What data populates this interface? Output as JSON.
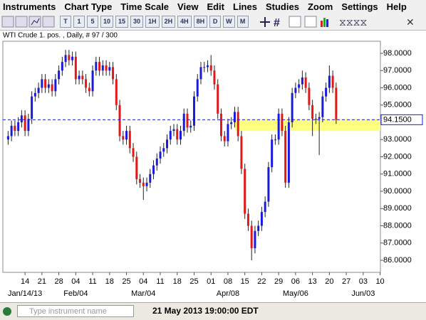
{
  "menu": [
    "Instruments",
    "Chart Type",
    "Time Scale",
    "View",
    "Edit",
    "Lines",
    "Studies",
    "Zoom",
    "Settings",
    "Help"
  ],
  "toolbar": [
    "T",
    "1",
    "5",
    "10",
    "15",
    "30",
    "1H",
    "2H",
    "4H",
    "8H",
    "D",
    "W",
    "M"
  ],
  "status": {
    "search_placeholder": "Type instrument name",
    "datetime": "21 May 2013 19:00:00 EDT"
  },
  "chart_data": {
    "type": "candlestick",
    "title": "WTI Crude 1. pos. , Daily, # 97 / 300",
    "categories": [
      null,
      null,
      null,
      null,
      null,
      "14",
      null,
      null,
      null,
      null,
      "21",
      null,
      null,
      null,
      null,
      "28",
      null,
      null,
      null,
      null,
      "04",
      null,
      null,
      null,
      null,
      "11",
      null,
      null,
      null,
      null,
      "18",
      null,
      null,
      null,
      null,
      "25",
      null,
      null,
      null,
      null,
      "04",
      null,
      null,
      null,
      null,
      "11",
      null,
      null,
      null,
      null,
      "18",
      null,
      null,
      null,
      null,
      "25",
      null,
      null,
      null,
      null,
      "01",
      null,
      null,
      null,
      null,
      "08",
      null,
      null,
      null,
      null,
      "15",
      null,
      null,
      null,
      null,
      "22",
      null,
      null,
      null,
      null,
      "29",
      null,
      null,
      null,
      null,
      "06",
      null,
      null,
      null,
      null,
      "13",
      null,
      null,
      null,
      null,
      "20",
      null,
      null,
      null,
      null,
      "27",
      null,
      null,
      null,
      null,
      "03",
      null,
      null,
      null,
      null,
      "10",
      null
    ],
    "categories2": [
      null,
      null,
      null,
      null,
      null,
      "Jan/14/13",
      null,
      null,
      null,
      null,
      null,
      null,
      null,
      null,
      null,
      null,
      null,
      null,
      null,
      null,
      "Feb/04",
      null,
      null,
      null,
      null,
      null,
      null,
      null,
      null,
      null,
      null,
      null,
      null,
      null,
      null,
      null,
      null,
      null,
      null,
      null,
      "Mar/04",
      null,
      null,
      null,
      null,
      null,
      null,
      null,
      null,
      null,
      null,
      null,
      null,
      null,
      null,
      null,
      null,
      null,
      null,
      null,
      null,
      null,
      null,
      null,
      null,
      "Apr/08",
      null,
      null,
      null,
      null,
      null,
      null,
      null,
      null,
      null,
      null,
      null,
      null,
      null,
      null,
      null,
      null,
      null,
      null,
      null,
      "May/06",
      null,
      null,
      null,
      null,
      null,
      null,
      null,
      null,
      null,
      null,
      null,
      null,
      null,
      null,
      null,
      null,
      null,
      null,
      null,
      "Jun/03",
      null,
      null,
      null,
      null,
      null,
      null
    ],
    "open": [
      93.0,
      93.2,
      93.8,
      93.5,
      94.0,
      94.4,
      93.5,
      94.2,
      95.5,
      95.7,
      96.0,
      96.5,
      96.0,
      96.2,
      95.8,
      96.5,
      97.0,
      97.5,
      97.9,
      97.6,
      97.8,
      96.5,
      96.7,
      96.5,
      96.0,
      95.8,
      97.0,
      97.5,
      97.0,
      97.3,
      97.0,
      97.2,
      96.5,
      95.0,
      93.2,
      93.0,
      93.5,
      92.5,
      92.0,
      90.7,
      90.5,
      90.3,
      90.5,
      91.0,
      91.5,
      91.9,
      92.3,
      92.5,
      93.0,
      93.5,
      93.6,
      93.0,
      93.5,
      94.5,
      93.7,
      93.8,
      95.5,
      96.5,
      97.2,
      97.2,
      97.3,
      97.0,
      96.2,
      94.5,
      93.2,
      92.9,
      93.9,
      94.0,
      94.6,
      93.2,
      91.3,
      88.7,
      88.0,
      86.7,
      87.7,
      88.0,
      88.8,
      89.4,
      91.4,
      93.0,
      93.0,
      94.5,
      93.5,
      90.5,
      94.0,
      95.7,
      96.0,
      96.2,
      96.6,
      96.0,
      95.0,
      94.2,
      94.2,
      94.3,
      95.5,
      96.0,
      96.7,
      96.0,
      null,
      null,
      null,
      null,
      null,
      null,
      null,
      null,
      null,
      null,
      null,
      null,
      null,
      null
    ],
    "high": [
      93.5,
      94.1,
      94.1,
      94.3,
      94.7,
      94.7,
      94.5,
      95.8,
      96.0,
      96.3,
      96.8,
      96.8,
      96.5,
      96.5,
      96.8,
      97.3,
      97.8,
      98.2,
      98.2,
      98.1,
      98.1,
      97.0,
      97.0,
      96.8,
      96.3,
      97.3,
      97.8,
      97.8,
      97.6,
      97.6,
      97.5,
      97.5,
      96.8,
      95.3,
      93.5,
      93.8,
      93.8,
      92.8,
      92.3,
      91.0,
      90.8,
      90.8,
      91.3,
      91.8,
      92.2,
      92.6,
      92.8,
      93.3,
      93.8,
      93.9,
      93.9,
      93.8,
      94.8,
      94.8,
      94.1,
      95.8,
      96.8,
      97.5,
      97.5,
      97.6,
      97.9,
      97.3,
      96.5,
      94.8,
      93.5,
      94.2,
      94.3,
      94.9,
      94.9,
      93.5,
      91.6,
      89.0,
      88.3,
      88.0,
      88.3,
      89.1,
      89.7,
      91.7,
      93.3,
      93.3,
      94.8,
      94.8,
      93.8,
      94.3,
      96.0,
      96.3,
      96.5,
      97.0,
      96.9,
      96.3,
      95.3,
      94.5,
      94.6,
      95.8,
      96.3,
      97.3,
      97.0,
      96.3,
      null,
      null,
      null,
      null,
      null,
      null,
      null,
      null,
      null,
      null,
      null,
      null,
      null,
      null
    ],
    "low": [
      92.7,
      92.9,
      93.2,
      93.2,
      93.7,
      93.2,
      93.2,
      93.9,
      95.2,
      95.4,
      95.7,
      95.7,
      95.7,
      95.5,
      95.5,
      96.2,
      96.7,
      97.2,
      97.3,
      97.3,
      96.2,
      96.2,
      96.2,
      95.7,
      95.5,
      95.5,
      96.7,
      96.7,
      96.7,
      96.7,
      96.7,
      96.2,
      94.7,
      92.9,
      92.7,
      92.7,
      92.2,
      91.7,
      90.4,
      90.2,
      89.5,
      90.0,
      90.2,
      90.7,
      91.2,
      91.6,
      92.0,
      92.2,
      92.7,
      93.2,
      92.7,
      92.7,
      93.2,
      93.4,
      93.4,
      93.5,
      95.2,
      96.2,
      96.9,
      96.9,
      96.7,
      95.9,
      94.2,
      92.9,
      92.6,
      92.6,
      93.6,
      93.7,
      92.9,
      91.0,
      88.4,
      87.7,
      86.0,
      86.4,
      87.4,
      87.7,
      88.5,
      89.1,
      91.1,
      92.7,
      92.7,
      93.2,
      90.2,
      90.2,
      93.7,
      95.4,
      95.7,
      95.9,
      95.7,
      94.7,
      93.2,
      93.9,
      92.1,
      94.0,
      95.2,
      95.7,
      95.7,
      93.9,
      null,
      null,
      null,
      null,
      null,
      null,
      null,
      null,
      null,
      null,
      null,
      null,
      null,
      null
    ],
    "close": [
      93.2,
      93.8,
      93.5,
      94.0,
      94.4,
      93.5,
      94.2,
      95.5,
      95.7,
      96.0,
      96.5,
      96.0,
      96.2,
      95.8,
      96.5,
      97.0,
      97.5,
      97.9,
      97.6,
      97.8,
      96.5,
      96.7,
      96.5,
      96.0,
      95.8,
      97.0,
      97.5,
      97.0,
      97.3,
      97.0,
      97.2,
      96.5,
      95.0,
      93.2,
      93.0,
      93.5,
      92.5,
      92.0,
      90.7,
      90.5,
      90.3,
      90.5,
      91.0,
      91.5,
      91.9,
      92.3,
      92.5,
      93.0,
      93.5,
      93.6,
      93.0,
      93.5,
      94.5,
      93.7,
      93.8,
      95.5,
      96.5,
      97.2,
      97.2,
      97.3,
      97.0,
      96.2,
      94.5,
      93.2,
      92.9,
      93.9,
      94.0,
      94.6,
      93.2,
      91.3,
      88.7,
      88.0,
      86.7,
      87.7,
      88.0,
      88.8,
      89.4,
      91.4,
      93.0,
      93.0,
      94.5,
      93.5,
      90.5,
      94.0,
      95.7,
      96.0,
      96.2,
      96.6,
      96.0,
      95.0,
      94.2,
      94.2,
      94.3,
      95.5,
      96.0,
      96.7,
      96.0,
      94.15,
      null,
      null,
      null,
      null,
      null,
      null,
      null,
      null,
      null,
      null,
      null,
      null,
      null,
      null
    ],
    "up_color": "#1a1adf",
    "down_color": "#e01818",
    "ylim": [
      85.3,
      98.7
    ],
    "yticks": [
      {
        "value": 86,
        "label": "86.0000"
      },
      {
        "value": 87,
        "label": "87.0000"
      },
      {
        "value": 88,
        "label": "88.0000"
      },
      {
        "value": 89,
        "label": "89.0000"
      },
      {
        "value": 90,
        "label": "90.0000"
      },
      {
        "value": 91,
        "label": "91.0000"
      },
      {
        "value": 92,
        "label": "92.0000"
      },
      {
        "value": 93,
        "label": "93.0000"
      },
      {
        "value": 94,
        "label": "94.0000"
      },
      {
        "value": 95,
        "label": "95.0000"
      },
      {
        "value": 96,
        "label": "96.0000"
      },
      {
        "value": 97,
        "label": "97.0000"
      },
      {
        "value": 98,
        "label": "98.0000"
      }
    ],
    "last_price": {
      "value": 94.15,
      "label": "94.1500"
    },
    "zone": [
      93.5,
      94.2
    ],
    "zone_color": "#ffff80",
    "grid": false
  }
}
